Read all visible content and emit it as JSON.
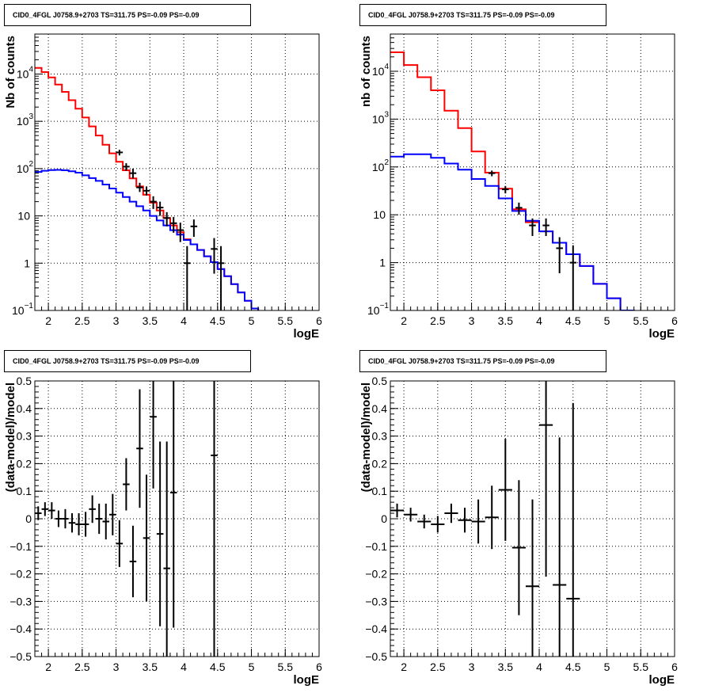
{
  "chart_data": [
    {
      "type": "histogram",
      "title": "CID0_4FGL J0758.9+2703 TS=311.75 PS=-0.09 PS=-0.09",
      "xlabel": "logE",
      "ylabel": "Nb of counts",
      "xlim": [
        1.8,
        6.0
      ],
      "ylim": [
        0.1,
        70000
      ],
      "yscale": "log",
      "grid": true,
      "xticks": [
        "2",
        "2.5",
        "3",
        "3.5",
        "4",
        "4.5",
        "5",
        "5.5",
        "6"
      ],
      "yticks": [
        {
          "value": 0.1,
          "label": "10",
          "exp": "−1"
        },
        {
          "value": 1,
          "label": "1",
          "exp": ""
        },
        {
          "value": 10,
          "label": "10",
          "exp": ""
        },
        {
          "value": 100,
          "label": "10",
          "exp": "2"
        },
        {
          "value": 1000,
          "label": "10",
          "exp": "3"
        },
        {
          "value": 10000,
          "label": "10",
          "exp": "4"
        }
      ],
      "series": [
        {
          "color": "#ff0000",
          "bin_edges": [
            1.8,
            1.9,
            2.0,
            2.1,
            2.2,
            2.3,
            2.4,
            2.5,
            2.6,
            2.7,
            2.8,
            2.9,
            3.0,
            3.1,
            3.2,
            3.3,
            3.4,
            3.5,
            3.6,
            3.7,
            3.8,
            3.9,
            4.0,
            4.1,
            4.2,
            4.3,
            4.4,
            4.5,
            4.6,
            4.7,
            4.8,
            4.9,
            5.0,
            5.1,
            5.2,
            5.3,
            5.4,
            5.5,
            5.6,
            5.7,
            5.8,
            5.9,
            6.0
          ],
          "values": [
            13500,
            11000,
            8500,
            6000,
            4200,
            2800,
            1850,
            1200,
            780,
            500,
            320,
            210,
            140,
            92,
            62,
            42,
            28,
            19,
            13,
            9,
            6.3,
            4.5,
            3.2,
            2.5,
            1.9,
            1.4,
            1.05,
            0.75,
            0.53,
            0.36,
            0.24,
            0.16,
            0.11,
            0.09,
            0.09,
            0.09,
            0.09,
            0.09,
            0.09,
            0.09,
            0.09,
            0.09
          ]
        },
        {
          "color": "#0000ff",
          "bin_edges": [
            1.8,
            1.9,
            2.0,
            2.1,
            2.2,
            2.3,
            2.4,
            2.5,
            2.6,
            2.7,
            2.8,
            2.9,
            3.0,
            3.1,
            3.2,
            3.3,
            3.4,
            3.5,
            3.6,
            3.7,
            3.8,
            3.9,
            4.0,
            4.1,
            4.2,
            4.3,
            4.4,
            4.5,
            4.6,
            4.7,
            4.8,
            4.9,
            5.0,
            5.1,
            5.2,
            5.3,
            5.4,
            5.5,
            5.6,
            5.7,
            5.8,
            5.9,
            6.0
          ],
          "values": [
            85,
            90,
            93,
            94,
            92,
            88,
            82,
            72,
            63,
            55,
            46,
            38,
            31,
            25,
            20,
            16,
            13,
            10,
            8,
            6.3,
            5.0,
            4.0,
            3.1,
            2.5,
            1.9,
            1.4,
            1.05,
            0.75,
            0.53,
            0.36,
            0.24,
            0.16,
            0.11,
            0.09,
            0.09,
            0.09,
            0.09,
            0.09,
            0.09,
            0.09,
            0.09,
            0.09
          ]
        }
      ],
      "points": [
        {
          "x": 3.05,
          "y": 220,
          "ylo": 190,
          "yhi": 250
        },
        {
          "x": 3.15,
          "y": 110,
          "ylo": 90,
          "yhi": 130
        },
        {
          "x": 3.25,
          "y": 80,
          "ylo": 62,
          "yhi": 100
        },
        {
          "x": 3.35,
          "y": 40,
          "ylo": 32,
          "yhi": 50
        },
        {
          "x": 3.45,
          "y": 34,
          "ylo": 27,
          "yhi": 42
        },
        {
          "x": 3.55,
          "y": 20,
          "ylo": 14,
          "yhi": 26
        },
        {
          "x": 3.65,
          "y": 15,
          "ylo": 10,
          "yhi": 20
        },
        {
          "x": 3.75,
          "y": 9,
          "ylo": 6,
          "yhi": 12
        },
        {
          "x": 3.85,
          "y": 7,
          "ylo": 4.4,
          "yhi": 9.5
        },
        {
          "x": 3.95,
          "y": 5,
          "ylo": 2.8,
          "yhi": 7.2
        },
        {
          "x": 4.05,
          "y": 1,
          "ylo": 0.1,
          "yhi": 2.3
        },
        {
          "x": 4.15,
          "y": 6,
          "ylo": 3.6,
          "yhi": 8.4
        },
        {
          "x": 4.45,
          "y": 2,
          "ylo": 0.6,
          "yhi": 3.4
        },
        {
          "x": 4.55,
          "y": 1,
          "ylo": 0.1,
          "yhi": 2.3
        }
      ]
    },
    {
      "type": "histogram",
      "title": "CID0_4FGL J0758.9+2703 TS=311.75 PS=-0.09 PS=-0.09",
      "xlabel": "logE",
      "ylabel": "nb of counts",
      "xlim": [
        1.8,
        6.0
      ],
      "ylim": [
        0.1,
        60000
      ],
      "yscale": "log",
      "grid": true,
      "xticks": [
        "2",
        "2.5",
        "3",
        "3.5",
        "4",
        "4.5",
        "5",
        "5.5",
        "6"
      ],
      "yticks": [
        {
          "value": 0.1,
          "label": "10",
          "exp": "−1"
        },
        {
          "value": 1,
          "label": "1",
          "exp": ""
        },
        {
          "value": 10,
          "label": "10",
          "exp": ""
        },
        {
          "value": 100,
          "label": "10",
          "exp": "2"
        },
        {
          "value": 1000,
          "label": "10",
          "exp": "3"
        },
        {
          "value": 10000,
          "label": "10",
          "exp": "4"
        }
      ],
      "series": [
        {
          "color": "#ff0000",
          "bin_edges": [
            1.8,
            2.0,
            2.2,
            2.4,
            2.6,
            2.8,
            3.0,
            3.2,
            3.4,
            3.6,
            3.8,
            4.0,
            4.2,
            4.4,
            4.6,
            4.8,
            5.0,
            5.2,
            5.4,
            5.6,
            5.8,
            6.0
          ],
          "values": [
            25000,
            13500,
            7500,
            4000,
            1500,
            650,
            210,
            76,
            35,
            13,
            7,
            4.5,
            2.6,
            1.5,
            0.85,
            0.36,
            0.18,
            0.1,
            0.09,
            0.09,
            0.09
          ]
        },
        {
          "color": "#0000ff",
          "bin_edges": [
            1.8,
            2.0,
            2.2,
            2.4,
            2.6,
            2.8,
            3.0,
            3.2,
            3.4,
            3.6,
            3.8,
            4.0,
            4.2,
            4.4,
            4.6,
            4.8,
            5.0,
            5.2,
            5.4,
            5.6,
            5.8,
            6.0
          ],
          "values": [
            165,
            185,
            185,
            155,
            118,
            88,
            56,
            40,
            22,
            12,
            7.5,
            4.5,
            2.6,
            1.5,
            0.85,
            0.36,
            0.18,
            0.1,
            0.09,
            0.09,
            0.09
          ]
        }
      ],
      "points": [
        {
          "x": 3.3,
          "y": 74,
          "ylo": 64,
          "yhi": 84
        },
        {
          "x": 3.5,
          "y": 34,
          "ylo": 28,
          "yhi": 40
        },
        {
          "x": 3.7,
          "y": 14,
          "ylo": 10,
          "yhi": 18
        },
        {
          "x": 3.9,
          "y": 6,
          "ylo": 3.6,
          "yhi": 8.4
        },
        {
          "x": 4.1,
          "y": 6,
          "ylo": 3.6,
          "yhi": 8.4
        },
        {
          "x": 4.3,
          "y": 2,
          "ylo": 0.6,
          "yhi": 3.4
        },
        {
          "x": 4.5,
          "y": 1,
          "ylo": 0.1,
          "yhi": 2.3
        }
      ]
    },
    {
      "type": "scatter",
      "title": "CID0_4FGL J0758.9+2703 TS=311.75 PS=-0.09 PS=-0.09",
      "xlabel": "logE",
      "ylabel": "(data-model)/model",
      "xlim": [
        1.8,
        6.0
      ],
      "ylim": [
        -0.5,
        0.5
      ],
      "yscale": "linear",
      "grid": true,
      "xticks": [
        "2",
        "2.5",
        "3",
        "3.5",
        "4",
        "4.5",
        "5",
        "5.5",
        "6"
      ],
      "yticks": [
        "−0.5",
        "−0.4",
        "−0.3",
        "−0.2",
        "−0.1",
        "0",
        "0.1",
        "0.2",
        "0.3",
        "0.4",
        "0.5"
      ],
      "xerr": 0.05,
      "points": [
        {
          "x": 1.85,
          "y": 0.02,
          "err": 0.025
        },
        {
          "x": 1.95,
          "y": 0.035,
          "err": 0.025
        },
        {
          "x": 2.05,
          "y": 0.03,
          "err": 0.03
        },
        {
          "x": 2.15,
          "y": 0.0,
          "err": 0.03
        },
        {
          "x": 2.25,
          "y": 0.0,
          "err": 0.035
        },
        {
          "x": 2.35,
          "y": -0.015,
          "err": 0.035
        },
        {
          "x": 2.45,
          "y": -0.02,
          "err": 0.04
        },
        {
          "x": 2.55,
          "y": -0.02,
          "err": 0.045
        },
        {
          "x": 2.65,
          "y": 0.035,
          "err": 0.05
        },
        {
          "x": 2.75,
          "y": 0.0,
          "err": 0.055
        },
        {
          "x": 2.85,
          "y": -0.01,
          "err": 0.065
        },
        {
          "x": 2.95,
          "y": 0.015,
          "err": 0.075
        },
        {
          "x": 3.05,
          "y": -0.09,
          "err": 0.085
        },
        {
          "x": 3.15,
          "y": 0.125,
          "err": 0.095
        },
        {
          "x": 3.25,
          "y": -0.155,
          "err": 0.13
        },
        {
          "x": 3.35,
          "y": 0.255,
          "err": 0.215
        },
        {
          "x": 3.45,
          "y": -0.07,
          "err": 0.23
        },
        {
          "x": 3.55,
          "y": 0.37,
          "err": 0.26
        },
        {
          "x": 3.65,
          "y": -0.055,
          "err": 0.335
        },
        {
          "x": 3.75,
          "y": -0.18,
          "err": 0.46
        },
        {
          "x": 3.85,
          "y": 0.095,
          "err": 0.49
        },
        {
          "x": 4.45,
          "y": 0.23,
          "err": 1.0
        }
      ]
    },
    {
      "type": "scatter",
      "title": "CID0_4FGL J0758.9+2703 TS=311.75 PS=-0.09 PS=-0.09",
      "xlabel": "logE",
      "ylabel": "(data-model)/model",
      "xlim": [
        1.8,
        6.0
      ],
      "ylim": [
        -0.5,
        0.5
      ],
      "yscale": "linear",
      "grid": true,
      "xticks": [
        "2",
        "2.5",
        "3",
        "3.5",
        "4",
        "4.5",
        "5",
        "5.5",
        "6"
      ],
      "yticks": [
        "−0.5",
        "−0.4",
        "−0.3",
        "−0.2",
        "−0.1",
        "0",
        "0.1",
        "0.2",
        "0.3",
        "0.4",
        "0.5"
      ],
      "xerr": 0.1,
      "points": [
        {
          "x": 1.9,
          "y": 0.03,
          "err": 0.025
        },
        {
          "x": 2.1,
          "y": 0.015,
          "err": 0.025
        },
        {
          "x": 2.3,
          "y": -0.01,
          "err": 0.025
        },
        {
          "x": 2.5,
          "y": -0.02,
          "err": 0.03
        },
        {
          "x": 2.7,
          "y": 0.02,
          "err": 0.035
        },
        {
          "x": 2.9,
          "y": -0.005,
          "err": 0.045
        },
        {
          "x": 3.1,
          "y": -0.01,
          "err": 0.08
        },
        {
          "x": 3.3,
          "y": 0.005,
          "err": 0.115
        },
        {
          "x": 3.5,
          "y": 0.105,
          "err": 0.185
        },
        {
          "x": 3.7,
          "y": -0.105,
          "err": 0.245
        },
        {
          "x": 3.9,
          "y": -0.245,
          "err": 0.315
        },
        {
          "x": 4.1,
          "y": 0.34,
          "err": 0.55
        },
        {
          "x": 4.3,
          "y": -0.24,
          "err": 0.535
        },
        {
          "x": 4.5,
          "y": -0.29,
          "err": 0.71
        }
      ]
    }
  ]
}
